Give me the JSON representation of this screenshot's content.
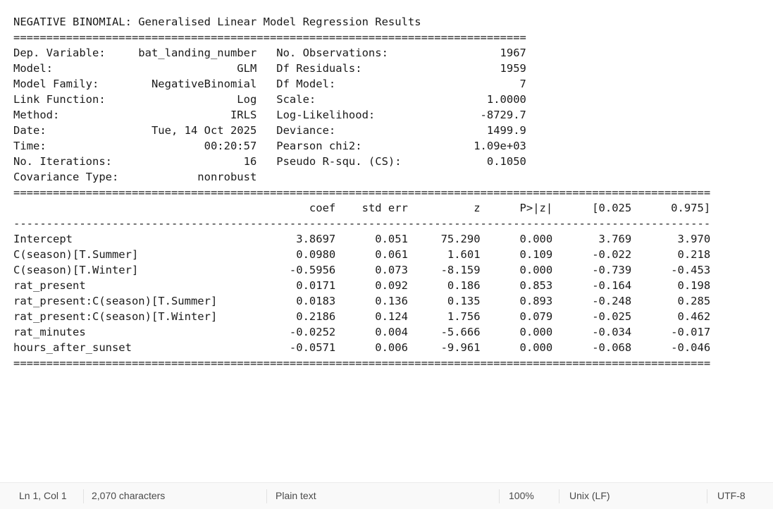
{
  "document": {
    "content": "NEGATIVE BINOMIAL: Generalised Linear Model Regression Results\n==============================================================================\nDep. Variable:     bat_landing_number   No. Observations:                 1967\nModel:                            GLM   Df Residuals:                     1959\nModel Family:        NegativeBinomial   Df Model:                            7\nLink Function:                    Log   Scale:                          1.0000\nMethod:                          IRLS   Log-Likelihood:                -8729.7\nDate:                Tue, 14 Oct 2025   Deviance:                       1499.9\nTime:                        00:20:57   Pearson chi2:                 1.09e+03\nNo. Iterations:                    16   Pseudo R-squ. (CS):             0.1050\nCovariance Type:            nonrobust                                         \n==========================================================================================================\n                                             coef    std err          z      P>|z|      [0.025      0.975]\n----------------------------------------------------------------------------------------------------------\nIntercept                                  3.8697      0.051     75.290      0.000       3.769       3.970\nC(season)[T.Summer]                        0.0980      0.061      1.601      0.109      -0.022       0.218\nC(season)[T.Winter]                       -0.5956      0.073     -8.159      0.000      -0.739      -0.453\nrat_present                                0.0171      0.092      0.186      0.853      -0.164       0.198\nrat_present:C(season)[T.Summer]            0.0183      0.136      0.135      0.893      -0.248       0.285\nrat_present:C(season)[T.Winter]            0.2186      0.124      1.756      0.079      -0.025       0.462\nrat_minutes                               -0.0252      0.004     -5.666      0.000      -0.034      -0.017\nhours_after_sunset                        -0.0571      0.006     -9.961      0.000      -0.068      -0.046\n=========================================================================================================="
  },
  "status_bar": {
    "cursor_position": "Ln 1, Col 1",
    "character_count": "2,070 characters",
    "file_type": "Plain text",
    "zoom": "100%",
    "line_ending": "Unix (LF)",
    "encoding": "UTF-8"
  }
}
